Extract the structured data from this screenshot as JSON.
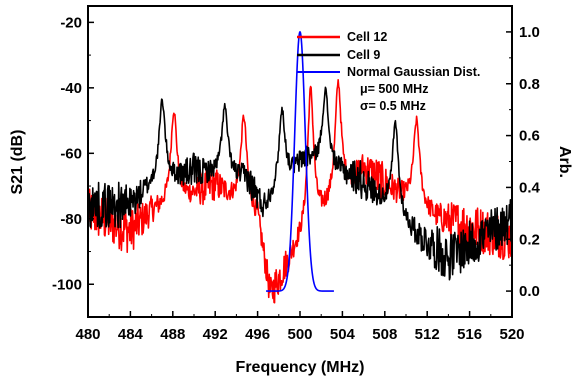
{
  "chart_data": {
    "type": "line",
    "xlabel": "Frequency (MHz)",
    "ylabel": "S21 (dB)",
    "y2label": "Arb.",
    "xlim": [
      480,
      520
    ],
    "ylim": [
      -110,
      -15
    ],
    "y2lim": [
      -0.1,
      1.1
    ],
    "xticks": [
      480,
      484,
      488,
      492,
      496,
      500,
      504,
      508,
      512,
      516,
      520
    ],
    "yticks": [
      -20,
      -40,
      -60,
      -80,
      -100
    ],
    "y2ticks": [
      1.0,
      0.8,
      0.6,
      0.4,
      0.2,
      0.0
    ],
    "xtick_labels": [
      "480",
      "484",
      "488",
      "492",
      "496",
      "500",
      "504",
      "508",
      "512",
      "516",
      "520"
    ],
    "ytick_labels": [
      "-20",
      "-40",
      "-60",
      "-80",
      "-100"
    ],
    "y2tick_labels": [
      "1.0",
      "0.8",
      "0.6",
      "0.4",
      "0.2",
      "0.0"
    ],
    "grid": false,
    "legend_position": "top-right",
    "series": [
      {
        "name": "Cell 12",
        "color": "#ff0000",
        "axis": "left",
        "peaks": [
          {
            "x": 488.1,
            "y": -47
          },
          {
            "x": 494.7,
            "y": -49
          },
          {
            "x": 501.0,
            "y": -41
          },
          {
            "x": 503.6,
            "y": -39
          },
          {
            "x": 511.0,
            "y": -50
          }
        ],
        "baseline": [
          {
            "x": 480,
            "y": -78
          },
          {
            "x": 484,
            "y": -84
          },
          {
            "x": 486,
            "y": -78
          },
          {
            "x": 492,
            "y": -70
          },
          {
            "x": 496,
            "y": -80
          },
          {
            "x": 497.2,
            "y": -104
          },
          {
            "x": 499.5,
            "y": -90
          },
          {
            "x": 506,
            "y": -65
          },
          {
            "x": 509,
            "y": -72
          },
          {
            "x": 513,
            "y": -80
          },
          {
            "x": 520,
            "y": -86
          }
        ]
      },
      {
        "name": "Cell 9",
        "color": "#000000",
        "axis": "left",
        "peaks": [
          {
            "x": 487.0,
            "y": -44
          },
          {
            "x": 492.9,
            "y": -46
          },
          {
            "x": 498.3,
            "y": -47
          },
          {
            "x": 502.4,
            "y": -41
          },
          {
            "x": 509.0,
            "y": -51
          }
        ],
        "baseline": [
          {
            "x": 480,
            "y": -76
          },
          {
            "x": 484,
            "y": -76
          },
          {
            "x": 486,
            "y": -70
          },
          {
            "x": 490,
            "y": -66
          },
          {
            "x": 495,
            "y": -68
          },
          {
            "x": 496.5,
            "y": -77
          },
          {
            "x": 500.5,
            "y": -62
          },
          {
            "x": 505.5,
            "y": -68
          },
          {
            "x": 507.5,
            "y": -74
          },
          {
            "x": 511,
            "y": -85
          },
          {
            "x": 514,
            "y": -92
          },
          {
            "x": 520,
            "y": -80
          }
        ]
      },
      {
        "name": "Normal Gaussian Dist.",
        "color": "#0000ff",
        "axis": "right",
        "mu": 500,
        "sigma": 0.5,
        "x_range": [
          496.8,
          503.2
        ],
        "peak_value": 1.0
      }
    ],
    "annotations": [
      "μ= 500 MHz",
      "σ= 0.5 MHz"
    ]
  }
}
